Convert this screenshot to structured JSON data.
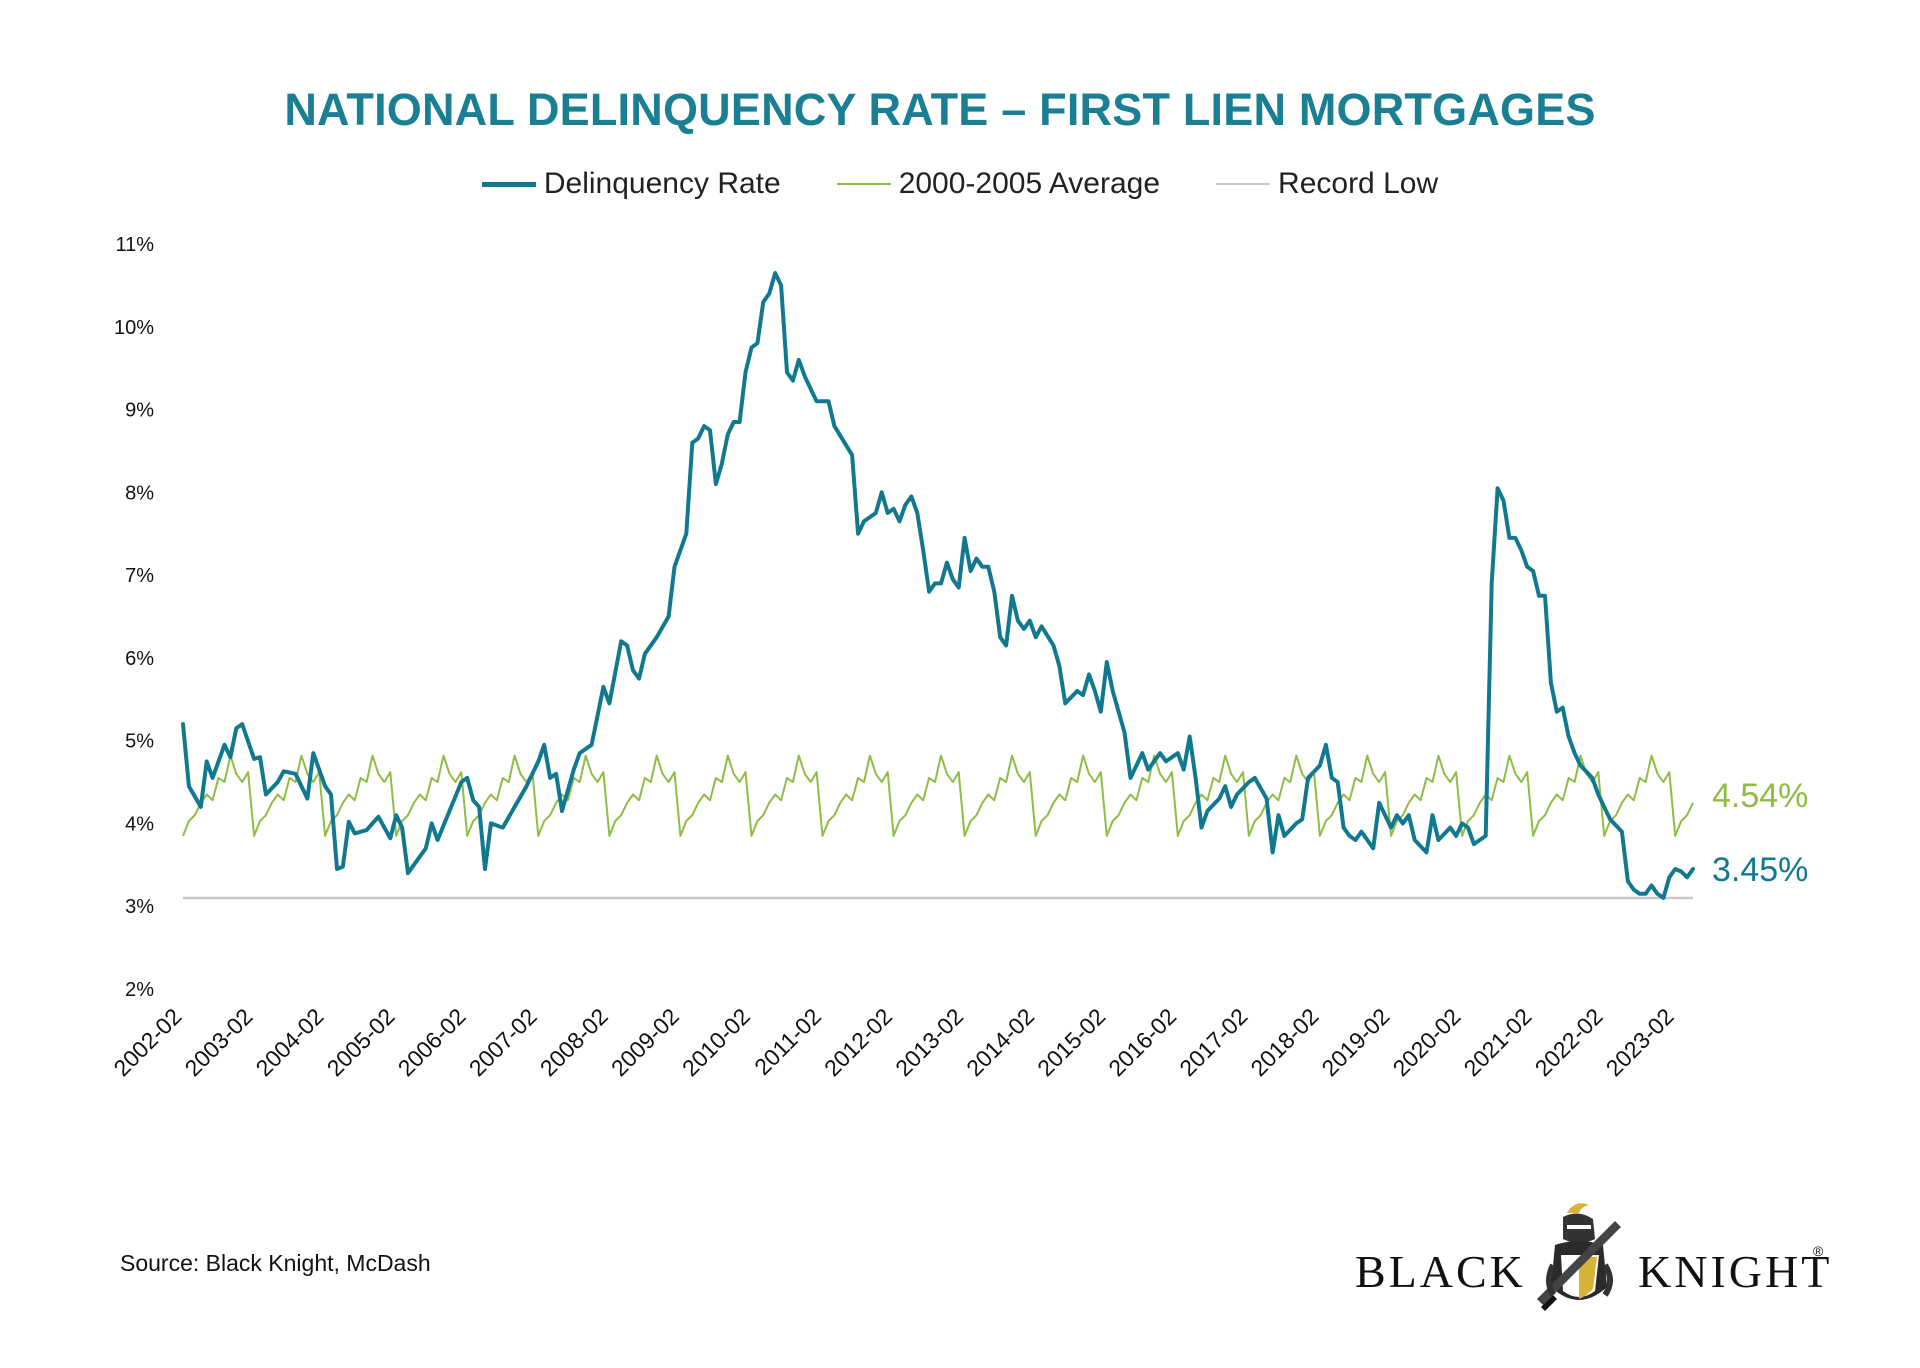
{
  "title": "NATIONAL DELINQUENCY RATE – FIRST LIEN MORTGAGES",
  "source": "Source: Black Knight, McDash",
  "logo": {
    "left_text": "BLACK",
    "right_text": "KNIGHT",
    "reg": "®"
  },
  "colors": {
    "title": "#1a7f93",
    "delinquency": "#11798f",
    "average": "#8fbc45",
    "record_low": "#c8c8c8"
  },
  "chart_data": {
    "type": "line",
    "title": "NATIONAL DELINQUENCY RATE – FIRST LIEN MORTGAGES",
    "xlabel": "",
    "ylabel": "",
    "ylim": [
      2,
      11
    ],
    "y_ticks": [
      "2%",
      "3%",
      "4%",
      "5%",
      "6%",
      "7%",
      "8%",
      "9%",
      "10%",
      "11%"
    ],
    "x_ticks": [
      "2002-02",
      "2003-02",
      "2004-02",
      "2005-02",
      "2006-02",
      "2007-02",
      "2008-02",
      "2009-02",
      "2010-02",
      "2011-02",
      "2012-02",
      "2013-02",
      "2014-02",
      "2015-02",
      "2016-02",
      "2017-02",
      "2018-02",
      "2019-02",
      "2020-02",
      "2021-02",
      "2022-02",
      "2023-02"
    ],
    "x_start": "2002-02",
    "x_end": "2023-05",
    "grid": false,
    "legend_position": "top-center",
    "series": [
      {
        "name": "Delinquency Rate",
        "end_label": "3.45%",
        "anchors": [
          [
            "2002-02",
            5.2
          ],
          [
            "2002-03",
            4.45
          ],
          [
            "2002-05",
            4.2
          ],
          [
            "2002-06",
            4.75
          ],
          [
            "2002-07",
            4.55
          ],
          [
            "2002-09",
            4.95
          ],
          [
            "2002-10",
            4.8
          ],
          [
            "2002-11",
            5.15
          ],
          [
            "2002-12",
            5.2
          ],
          [
            "2003-02",
            4.78
          ],
          [
            "2003-03",
            4.8
          ],
          [
            "2003-04",
            4.35
          ],
          [
            "2003-06",
            4.5
          ],
          [
            "2003-07",
            4.63
          ],
          [
            "2003-09",
            4.6
          ],
          [
            "2003-11",
            4.3
          ],
          [
            "2003-12",
            4.85
          ],
          [
            "2004-02",
            4.45
          ],
          [
            "2004-03",
            4.35
          ],
          [
            "2004-04",
            3.45
          ],
          [
            "2004-05",
            3.48
          ],
          [
            "2004-06",
            4.02
          ],
          [
            "2004-07",
            3.88
          ],
          [
            "2004-09",
            3.92
          ],
          [
            "2004-11",
            4.08
          ],
          [
            "2005-01",
            3.82
          ],
          [
            "2005-02",
            4.1
          ],
          [
            "2005-03",
            3.95
          ],
          [
            "2005-04",
            3.4
          ],
          [
            "2005-07",
            3.7
          ],
          [
            "2005-08",
            4.0
          ],
          [
            "2005-09",
            3.8
          ],
          [
            "2006-01",
            4.5
          ],
          [
            "2006-02",
            4.55
          ],
          [
            "2006-03",
            4.28
          ],
          [
            "2006-04",
            4.2
          ],
          [
            "2006-05",
            3.45
          ],
          [
            "2006-06",
            4.0
          ],
          [
            "2006-08",
            3.95
          ],
          [
            "2006-10",
            4.2
          ],
          [
            "2006-12",
            4.45
          ],
          [
            "2007-02",
            4.75
          ],
          [
            "2007-03",
            4.95
          ],
          [
            "2007-04",
            4.55
          ],
          [
            "2007-05",
            4.6
          ],
          [
            "2007-06",
            4.15
          ],
          [
            "2007-08",
            4.65
          ],
          [
            "2007-09",
            4.85
          ],
          [
            "2007-11",
            4.95
          ],
          [
            "2008-01",
            5.65
          ],
          [
            "2008-02",
            5.45
          ],
          [
            "2008-04",
            6.2
          ],
          [
            "2008-05",
            6.15
          ],
          [
            "2008-06",
            5.85
          ],
          [
            "2008-07",
            5.75
          ],
          [
            "2008-08",
            6.05
          ],
          [
            "2008-10",
            6.25
          ],
          [
            "2008-12",
            6.5
          ],
          [
            "2009-01",
            7.1
          ],
          [
            "2009-03",
            7.5
          ],
          [
            "2009-04",
            8.6
          ],
          [
            "2009-05",
            8.65
          ],
          [
            "2009-06",
            8.8
          ],
          [
            "2009-07",
            8.75
          ],
          [
            "2009-08",
            8.1
          ],
          [
            "2009-09",
            8.35
          ],
          [
            "2009-10",
            8.7
          ],
          [
            "2009-11",
            8.85
          ],
          [
            "2009-12",
            8.85
          ],
          [
            "2010-01",
            9.45
          ],
          [
            "2010-02",
            9.75
          ],
          [
            "2010-03",
            9.8
          ],
          [
            "2010-04",
            10.3
          ],
          [
            "2010-05",
            10.4
          ],
          [
            "2010-06",
            10.65
          ],
          [
            "2010-07",
            10.5
          ],
          [
            "2010-08",
            9.45
          ],
          [
            "2010-09",
            9.35
          ],
          [
            "2010-10",
            9.6
          ],
          [
            "2010-11",
            9.4
          ],
          [
            "2010-12",
            9.25
          ],
          [
            "2011-01",
            9.1
          ],
          [
            "2011-03",
            9.1
          ],
          [
            "2011-04",
            8.8
          ],
          [
            "2011-07",
            8.45
          ],
          [
            "2011-08",
            7.5
          ],
          [
            "2011-09",
            7.65
          ],
          [
            "2011-11",
            7.75
          ],
          [
            "2011-12",
            8.0
          ],
          [
            "2012-01",
            7.75
          ],
          [
            "2012-02",
            7.8
          ],
          [
            "2012-03",
            7.65
          ],
          [
            "2012-04",
            7.85
          ],
          [
            "2012-05",
            7.95
          ],
          [
            "2012-06",
            7.75
          ],
          [
            "2012-07",
            7.3
          ],
          [
            "2012-08",
            6.8
          ],
          [
            "2012-09",
            6.9
          ],
          [
            "2012-10",
            6.9
          ],
          [
            "2012-11",
            7.15
          ],
          [
            "2012-12",
            6.95
          ],
          [
            "2013-01",
            6.85
          ],
          [
            "2013-02",
            7.45
          ],
          [
            "2013-03",
            7.05
          ],
          [
            "2013-04",
            7.2
          ],
          [
            "2013-05",
            7.1
          ],
          [
            "2013-06",
            7.1
          ],
          [
            "2013-07",
            6.8
          ],
          [
            "2013-08",
            6.25
          ],
          [
            "2013-09",
            6.15
          ],
          [
            "2013-10",
            6.75
          ],
          [
            "2013-11",
            6.45
          ],
          [
            "2013-12",
            6.35
          ],
          [
            "2014-01",
            6.45
          ],
          [
            "2014-02",
            6.25
          ],
          [
            "2014-03",
            6.38
          ],
          [
            "2014-05",
            6.15
          ],
          [
            "2014-06",
            5.9
          ],
          [
            "2014-07",
            5.45
          ],
          [
            "2014-09",
            5.6
          ],
          [
            "2014-10",
            5.55
          ],
          [
            "2014-11",
            5.8
          ],
          [
            "2014-12",
            5.6
          ],
          [
            "2015-01",
            5.35
          ],
          [
            "2015-02",
            5.95
          ],
          [
            "2015-03",
            5.6
          ],
          [
            "2015-04",
            5.35
          ],
          [
            "2015-05",
            5.1
          ],
          [
            "2015-06",
            4.55
          ],
          [
            "2015-08",
            4.85
          ],
          [
            "2015-09",
            4.65
          ],
          [
            "2015-11",
            4.85
          ],
          [
            "2015-12",
            4.75
          ],
          [
            "2016-02",
            4.85
          ],
          [
            "2016-03",
            4.65
          ],
          [
            "2016-04",
            5.05
          ],
          [
            "2016-05",
            4.55
          ],
          [
            "2016-06",
            3.95
          ],
          [
            "2016-07",
            4.15
          ],
          [
            "2016-09",
            4.3
          ],
          [
            "2016-10",
            4.45
          ],
          [
            "2016-11",
            4.2
          ],
          [
            "2016-12",
            4.35
          ],
          [
            "2017-02",
            4.5
          ],
          [
            "2017-03",
            4.55
          ],
          [
            "2017-05",
            4.3
          ],
          [
            "2017-06",
            3.65
          ],
          [
            "2017-07",
            4.1
          ],
          [
            "2017-08",
            3.85
          ],
          [
            "2017-10",
            4.0
          ],
          [
            "2017-11",
            4.05
          ],
          [
            "2017-12",
            4.55
          ],
          [
            "2018-02",
            4.7
          ],
          [
            "2018-03",
            4.95
          ],
          [
            "2018-04",
            4.55
          ],
          [
            "2018-05",
            4.5
          ],
          [
            "2018-06",
            3.95
          ],
          [
            "2018-07",
            3.85
          ],
          [
            "2018-08",
            3.8
          ],
          [
            "2018-09",
            3.9
          ],
          [
            "2018-11",
            3.7
          ],
          [
            "2018-12",
            4.25
          ],
          [
            "2019-02",
            3.95
          ],
          [
            "2019-03",
            4.1
          ],
          [
            "2019-04",
            4.0
          ],
          [
            "2019-05",
            4.1
          ],
          [
            "2019-06",
            3.8
          ],
          [
            "2019-08",
            3.65
          ],
          [
            "2019-09",
            4.1
          ],
          [
            "2019-10",
            3.8
          ],
          [
            "2019-12",
            3.95
          ],
          [
            "2020-01",
            3.85
          ],
          [
            "2020-02",
            4.0
          ],
          [
            "2020-03",
            3.95
          ],
          [
            "2020-04",
            3.75
          ],
          [
            "2020-05",
            3.8
          ],
          [
            "2020-06",
            3.85
          ],
          [
            "2020-07",
            6.9
          ],
          [
            "2020-08",
            8.05
          ],
          [
            "2020-09",
            7.9
          ],
          [
            "2020-10",
            7.45
          ],
          [
            "2020-11",
            7.45
          ],
          [
            "2020-12",
            7.3
          ],
          [
            "2021-01",
            7.1
          ],
          [
            "2021-02",
            7.05
          ],
          [
            "2021-03",
            6.75
          ],
          [
            "2021-04",
            6.75
          ],
          [
            "2021-05",
            5.7
          ],
          [
            "2021-06",
            5.35
          ],
          [
            "2021-07",
            5.4
          ],
          [
            "2021-08",
            5.05
          ],
          [
            "2021-09",
            4.85
          ],
          [
            "2021-10",
            4.7
          ],
          [
            "2021-12",
            4.55
          ],
          [
            "2022-01",
            4.35
          ],
          [
            "2022-03",
            4.05
          ],
          [
            "2022-05",
            3.9
          ],
          [
            "2022-06",
            3.3
          ],
          [
            "2022-07",
            3.2
          ],
          [
            "2022-08",
            3.15
          ],
          [
            "2022-09",
            3.15
          ],
          [
            "2022-10",
            3.25
          ],
          [
            "2022-11",
            3.15
          ],
          [
            "2022-12",
            3.1
          ],
          [
            "2023-01",
            3.35
          ],
          [
            "2023-02",
            3.45
          ],
          [
            "2023-03",
            3.42
          ],
          [
            "2023-04",
            3.35
          ],
          [
            "2023-05",
            3.45
          ]
        ]
      },
      {
        "name": "2000-2005 Average",
        "end_label": "4.54%",
        "monthly_pattern": [
          3.85,
          4.03,
          4.1,
          4.25,
          4.35,
          4.28,
          4.55,
          4.5,
          4.82,
          4.6,
          4.5,
          4.62
        ],
        "pattern_start": "2002-02"
      },
      {
        "name": "Record Low",
        "value": 3.1
      }
    ]
  }
}
